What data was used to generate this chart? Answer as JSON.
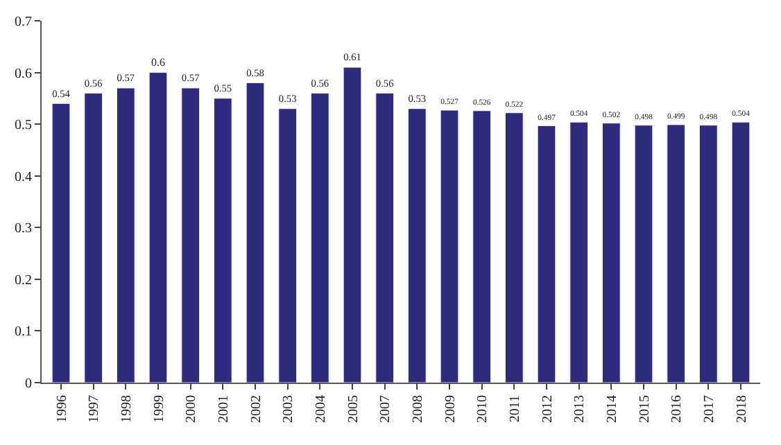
{
  "chart_data": {
    "type": "bar",
    "categories": [
      "1996",
      "1997",
      "1998",
      "1999",
      "2000",
      "2001",
      "2002",
      "2003",
      "2004",
      "2005",
      "2007",
      "2008",
      "2009",
      "2010",
      "2011",
      "2012",
      "2013",
      "2014",
      "2015",
      "2016",
      "2017",
      "2018"
    ],
    "values": [
      0.54,
      0.56,
      0.57,
      0.6,
      0.57,
      0.55,
      0.58,
      0.53,
      0.56,
      0.61,
      0.56,
      0.53,
      0.527,
      0.526,
      0.522,
      0.497,
      0.504,
      0.502,
      0.498,
      0.499,
      0.498,
      0.504
    ],
    "color": "#2e2a7c",
    "ylim": [
      0,
      0.7
    ],
    "yticks": [
      0,
      0.1,
      0.2,
      0.3,
      0.4,
      0.5,
      0.6,
      0.7
    ],
    "data_labels": true
  }
}
